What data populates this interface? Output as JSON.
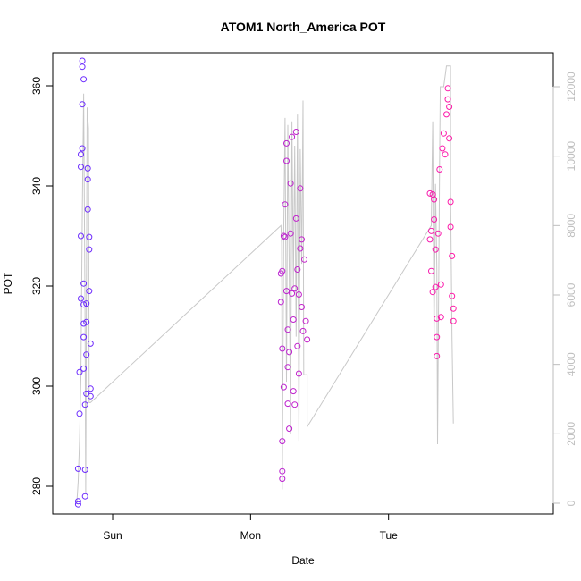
{
  "chart_data": {
    "type": "scatter",
    "title": "ATOM1 North_America POT",
    "xlabel": "Date",
    "ylabel": "POT",
    "x_ticks": [
      "Sun",
      "Mon",
      "Tue"
    ],
    "y_ticks": [
      280,
      300,
      320,
      340,
      360
    ],
    "y_range": [
      275,
      367
    ],
    "y2_ticks": [
      0,
      2000,
      4000,
      6000,
      8000,
      10000,
      12000
    ],
    "y2_range": [
      -100,
      12600
    ],
    "x_range_days": [
      0,
      3.22
    ],
    "grid": false,
    "colors": {
      "point_start": "#6a2bff",
      "point_end": "#ff1aa8",
      "line": "#c8c8c8"
    },
    "series": [
      {
        "style": "points",
        "axis": "left",
        "points": [
          {
            "x": 0.1,
            "y": 277.0
          },
          {
            "x": 0.1,
            "y": 276.4
          },
          {
            "x": 0.1,
            "y": 283.5
          },
          {
            "x": 0.11,
            "y": 294.5
          },
          {
            "x": 0.11,
            "y": 302.8
          },
          {
            "x": 0.12,
            "y": 317.5
          },
          {
            "x": 0.12,
            "y": 330.0
          },
          {
            "x": 0.12,
            "y": 343.8
          },
          {
            "x": 0.12,
            "y": 346.3
          },
          {
            "x": 0.13,
            "y": 347.5
          },
          {
            "x": 0.13,
            "y": 356.3
          },
          {
            "x": 0.13,
            "y": 365.0
          },
          {
            "x": 0.13,
            "y": 363.8
          },
          {
            "x": 0.14,
            "y": 361.3
          },
          {
            "x": 0.14,
            "y": 320.5
          },
          {
            "x": 0.14,
            "y": 316.3
          },
          {
            "x": 0.14,
            "y": 312.5
          },
          {
            "x": 0.14,
            "y": 309.8
          },
          {
            "x": 0.14,
            "y": 303.5
          },
          {
            "x": 0.15,
            "y": 296.3
          },
          {
            "x": 0.15,
            "y": 278.0
          },
          {
            "x": 0.15,
            "y": 283.3
          },
          {
            "x": 0.16,
            "y": 298.5
          },
          {
            "x": 0.16,
            "y": 306.3
          },
          {
            "x": 0.16,
            "y": 312.8
          },
          {
            "x": 0.16,
            "y": 316.5
          },
          {
            "x": 0.17,
            "y": 335.3
          },
          {
            "x": 0.17,
            "y": 341.3
          },
          {
            "x": 0.17,
            "y": 343.5
          },
          {
            "x": 0.18,
            "y": 329.8
          },
          {
            "x": 0.18,
            "y": 327.3
          },
          {
            "x": 0.18,
            "y": 319.0
          },
          {
            "x": 0.19,
            "y": 308.5
          },
          {
            "x": 0.19,
            "y": 299.5
          },
          {
            "x": 0.19,
            "y": 298.0
          },
          {
            "x": 1.57,
            "y": 316.8
          },
          {
            "x": 1.57,
            "y": 322.5
          },
          {
            "x": 1.58,
            "y": 323.0
          },
          {
            "x": 1.58,
            "y": 307.5
          },
          {
            "x": 1.58,
            "y": 289.0
          },
          {
            "x": 1.58,
            "y": 283.0
          },
          {
            "x": 1.58,
            "y": 281.5
          },
          {
            "x": 1.59,
            "y": 299.8
          },
          {
            "x": 1.59,
            "y": 330.0
          },
          {
            "x": 1.6,
            "y": 329.8
          },
          {
            "x": 1.6,
            "y": 336.3
          },
          {
            "x": 1.61,
            "y": 348.5
          },
          {
            "x": 1.61,
            "y": 345.0
          },
          {
            "x": 1.61,
            "y": 319.0
          },
          {
            "x": 1.62,
            "y": 311.3
          },
          {
            "x": 1.62,
            "y": 303.8
          },
          {
            "x": 1.62,
            "y": 296.5
          },
          {
            "x": 1.63,
            "y": 291.5
          },
          {
            "x": 1.63,
            "y": 306.8
          },
          {
            "x": 1.64,
            "y": 330.5
          },
          {
            "x": 1.64,
            "y": 340.5
          },
          {
            "x": 1.65,
            "y": 349.8
          },
          {
            "x": 1.65,
            "y": 318.5
          },
          {
            "x": 1.66,
            "y": 313.3
          },
          {
            "x": 1.66,
            "y": 299.0
          },
          {
            "x": 1.67,
            "y": 296.3
          },
          {
            "x": 1.67,
            "y": 319.5
          },
          {
            "x": 1.68,
            "y": 333.5
          },
          {
            "x": 1.68,
            "y": 350.8
          },
          {
            "x": 1.69,
            "y": 323.3
          },
          {
            "x": 1.69,
            "y": 308.0
          },
          {
            "x": 1.7,
            "y": 318.3
          },
          {
            "x": 1.7,
            "y": 302.5
          },
          {
            "x": 1.71,
            "y": 327.5
          },
          {
            "x": 1.71,
            "y": 339.5
          },
          {
            "x": 1.72,
            "y": 329.3
          },
          {
            "x": 1.72,
            "y": 315.8
          },
          {
            "x": 1.73,
            "y": 311.0
          },
          {
            "x": 1.74,
            "y": 325.3
          },
          {
            "x": 1.75,
            "y": 313.0
          },
          {
            "x": 1.76,
            "y": 309.3
          },
          {
            "x": 2.65,
            "y": 329.3
          },
          {
            "x": 2.65,
            "y": 338.5
          },
          {
            "x": 2.66,
            "y": 331.0
          },
          {
            "x": 2.66,
            "y": 323.0
          },
          {
            "x": 2.67,
            "y": 318.8
          },
          {
            "x": 2.67,
            "y": 338.3
          },
          {
            "x": 2.68,
            "y": 337.3
          },
          {
            "x": 2.68,
            "y": 333.3
          },
          {
            "x": 2.69,
            "y": 327.3
          },
          {
            "x": 2.69,
            "y": 319.8
          },
          {
            "x": 2.7,
            "y": 313.5
          },
          {
            "x": 2.7,
            "y": 309.8
          },
          {
            "x": 2.7,
            "y": 306.0
          },
          {
            "x": 2.71,
            "y": 330.5
          },
          {
            "x": 2.72,
            "y": 343.3
          },
          {
            "x": 2.73,
            "y": 320.3
          },
          {
            "x": 2.73,
            "y": 313.8
          },
          {
            "x": 2.74,
            "y": 347.5
          },
          {
            "x": 2.75,
            "y": 350.5
          },
          {
            "x": 2.76,
            "y": 346.3
          },
          {
            "x": 2.77,
            "y": 354.3
          },
          {
            "x": 2.78,
            "y": 357.3
          },
          {
            "x": 2.78,
            "y": 359.5
          },
          {
            "x": 2.79,
            "y": 355.8
          },
          {
            "x": 2.79,
            "y": 349.5
          },
          {
            "x": 2.8,
            "y": 336.8
          },
          {
            "x": 2.8,
            "y": 331.8
          },
          {
            "x": 2.81,
            "y": 326.0
          },
          {
            "x": 2.81,
            "y": 318.0
          },
          {
            "x": 2.82,
            "y": 315.5
          },
          {
            "x": 2.82,
            "y": 313.0
          }
        ]
      },
      {
        "style": "line",
        "axis": "right",
        "points": [
          {
            "x": 0.09,
            "y": 0
          },
          {
            "x": 0.1,
            "y": 600
          },
          {
            "x": 0.11,
            "y": 1800
          },
          {
            "x": 0.12,
            "y": 3600
          },
          {
            "x": 0.13,
            "y": 8400
          },
          {
            "x": 0.14,
            "y": 11800
          },
          {
            "x": 0.15,
            "y": 5200
          },
          {
            "x": 0.155,
            "y": 300
          },
          {
            "x": 0.165,
            "y": 11400
          },
          {
            "x": 0.175,
            "y": 10800
          },
          {
            "x": 0.18,
            "y": 2900
          },
          {
            "x": 0.19,
            "y": 2900
          },
          {
            "x": 1.57,
            "y": 8000
          },
          {
            "x": 1.575,
            "y": 7500
          },
          {
            "x": 1.58,
            "y": 400
          },
          {
            "x": 1.59,
            "y": 7800
          },
          {
            "x": 1.6,
            "y": 11100
          },
          {
            "x": 1.61,
            "y": 3500
          },
          {
            "x": 1.62,
            "y": 10900
          },
          {
            "x": 1.63,
            "y": 6600
          },
          {
            "x": 1.64,
            "y": 2000
          },
          {
            "x": 1.65,
            "y": 11000
          },
          {
            "x": 1.66,
            "y": 6200
          },
          {
            "x": 1.67,
            "y": 10300
          },
          {
            "x": 1.68,
            "y": 4800
          },
          {
            "x": 1.69,
            "y": 11200
          },
          {
            "x": 1.7,
            "y": 1800
          },
          {
            "x": 1.71,
            "y": 10200
          },
          {
            "x": 1.72,
            "y": 6900
          },
          {
            "x": 1.73,
            "y": 11600
          },
          {
            "x": 1.735,
            "y": 3700
          },
          {
            "x": 1.76,
            "y": 3700
          },
          {
            "x": 1.76,
            "y": 2200
          },
          {
            "x": 2.66,
            "y": 8000
          },
          {
            "x": 2.67,
            "y": 11000
          },
          {
            "x": 2.68,
            "y": 4600
          },
          {
            "x": 2.69,
            "y": 9200
          },
          {
            "x": 2.7,
            "y": 6800
          },
          {
            "x": 2.705,
            "y": 1700
          },
          {
            "x": 2.72,
            "y": 9800
          },
          {
            "x": 2.725,
            "y": 12000
          },
          {
            "x": 2.75,
            "y": 12000
          },
          {
            "x": 2.77,
            "y": 12600
          },
          {
            "x": 2.8,
            "y": 12600
          },
          {
            "x": 2.8,
            "y": 9000
          },
          {
            "x": 2.81,
            "y": 4800
          },
          {
            "x": 2.82,
            "y": 2300
          }
        ]
      }
    ]
  }
}
